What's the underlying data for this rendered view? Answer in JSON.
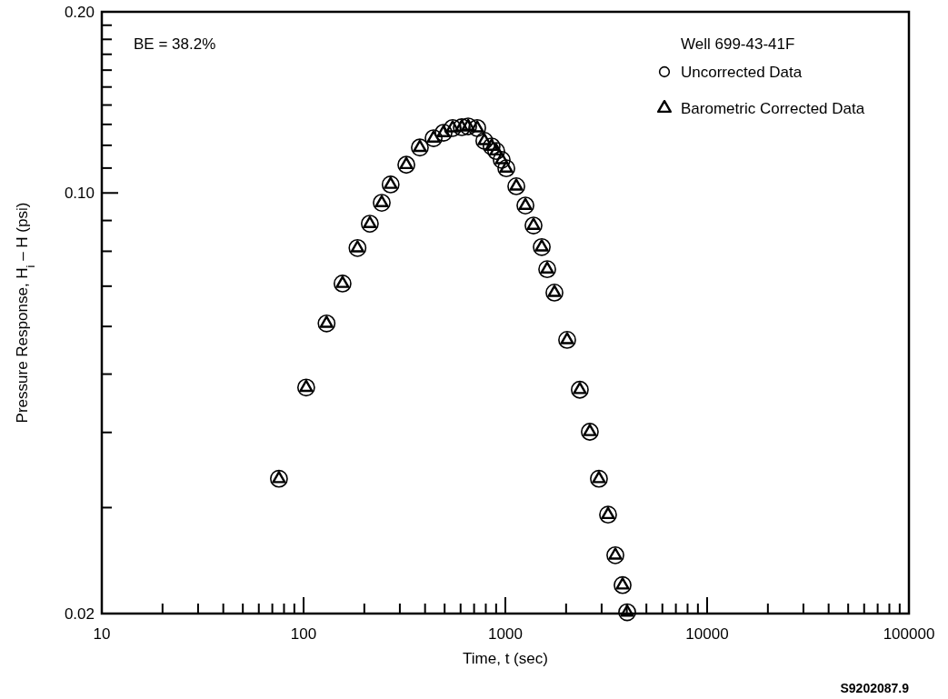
{
  "chart_data": {
    "type": "scatter",
    "xlabel": "Time, t (sec)",
    "ylabel": "Pressure Response, H$_{i}$ – H (psi)",
    "legend_title": "Well 699-43-41F",
    "legend": "top right",
    "log": "xy",
    "grid": false,
    "annotations": [
      "BE = 38.2%",
      "S9202087.9"
    ],
    "xlim": [
      10,
      100000
    ],
    "ylim": [
      0.02,
      0.2
    ],
    "xticks": [
      10,
      {
        "value": 20,
        "label": null
      },
      {
        "value": 30,
        "label": null
      },
      {
        "value": 40,
        "label": null
      },
      {
        "value": 50,
        "label": null
      },
      {
        "value": 60,
        "label": null
      },
      {
        "value": 70,
        "label": null
      },
      {
        "value": 80,
        "label": null
      },
      {
        "value": 90,
        "label": null
      },
      100,
      {
        "value": 200,
        "label": null
      },
      {
        "value": 300,
        "label": null
      },
      {
        "value": 400,
        "label": null
      },
      {
        "value": 500,
        "label": null
      },
      {
        "value": 600,
        "label": null
      },
      {
        "value": 700,
        "label": null
      },
      {
        "value": 800,
        "label": null
      },
      {
        "value": 900,
        "label": null
      },
      1000,
      {
        "value": 2000,
        "label": null
      },
      {
        "value": 3000,
        "label": null
      },
      {
        "value": 4000,
        "label": null
      },
      {
        "value": 5000,
        "label": null
      },
      {
        "value": 6000,
        "label": null
      },
      {
        "value": 7000,
        "label": null
      },
      {
        "value": 8000,
        "label": null
      },
      {
        "value": 9000,
        "label": null
      },
      10000,
      {
        "value": 20000,
        "label": null
      },
      {
        "value": 30000,
        "label": null
      },
      {
        "value": 40000,
        "label": null
      },
      {
        "value": 50000,
        "label": null
      },
      {
        "value": 60000,
        "label": null
      },
      {
        "value": 70000,
        "label": null
      },
      {
        "value": 80000,
        "label": null
      },
      {
        "value": 90000,
        "label": null
      },
      100000
    ],
    "yticks": [
      {
        "value": 0.02,
        "label": "0.02"
      },
      {
        "value": 0.03,
        "label": null
      },
      {
        "value": 0.04,
        "label": null
      },
      {
        "value": 0.05,
        "label": null
      },
      {
        "value": 0.06,
        "label": null
      },
      {
        "value": 0.07,
        "label": null
      },
      {
        "value": 0.08,
        "label": null
      },
      {
        "value": 0.09,
        "label": null
      },
      {
        "value": 0.1,
        "label": "0.10"
      },
      {
        "value": 0.11,
        "label": null
      },
      {
        "value": 0.12,
        "label": null
      },
      {
        "value": 0.13,
        "label": null
      },
      {
        "value": 0.14,
        "label": null
      },
      {
        "value": 0.15,
        "label": null
      },
      {
        "value": 0.16,
        "label": null
      },
      {
        "value": 0.17,
        "label": null
      },
      {
        "value": 0.18,
        "label": null
      },
      {
        "value": 0.19,
        "label": null
      },
      {
        "value": 0.2,
        "label": "0.20"
      }
    ],
    "x": [
      75.5,
      103,
      130,
      156,
      185,
      213,
      244,
      270,
      323,
      377,
      441,
      494,
      548,
      608,
      654,
      725,
      787,
      855,
      901,
      959,
      1011,
      1133,
      1257,
      1379,
      1515,
      1612,
      1751,
      2024,
      2339,
      2622,
      2909,
      3228,
      3508,
      3811,
      4015
    ],
    "series": [
      {
        "name": "Uncorrected Data",
        "color": "#000000",
        "marker": "circle",
        "values": [
          0.0335,
          0.0475,
          0.0607,
          0.0707,
          0.081,
          0.0889,
          0.0963,
          0.1033,
          0.1114,
          0.119,
          0.1233,
          0.1259,
          0.1282,
          0.1286,
          0.129,
          0.1282,
          0.1221,
          0.1195,
          0.1174,
          0.1135,
          0.1099,
          0.1026,
          0.0953,
          0.0883,
          0.0813,
          0.0747,
          0.0683,
          0.057,
          0.0471,
          0.0401,
          0.0335,
          0.0292,
          0.025,
          0.0223,
          0.0201
        ]
      },
      {
        "name": "Barometric Corrected Data",
        "color": "#000000",
        "marker": "triangle",
        "values": [
          0.0335,
          0.0475,
          0.0607,
          0.0707,
          0.081,
          0.0889,
          0.0963,
          0.1033,
          0.1114,
          0.119,
          0.1233,
          0.1259,
          0.1282,
          0.1286,
          0.129,
          0.1282,
          0.1221,
          0.1195,
          0.1174,
          0.1135,
          0.1099,
          0.1026,
          0.0953,
          0.0883,
          0.0813,
          0.0747,
          0.0683,
          0.057,
          0.0471,
          0.0401,
          0.0335,
          0.0292,
          0.025,
          0.0223,
          0.0201
        ]
      }
    ]
  }
}
